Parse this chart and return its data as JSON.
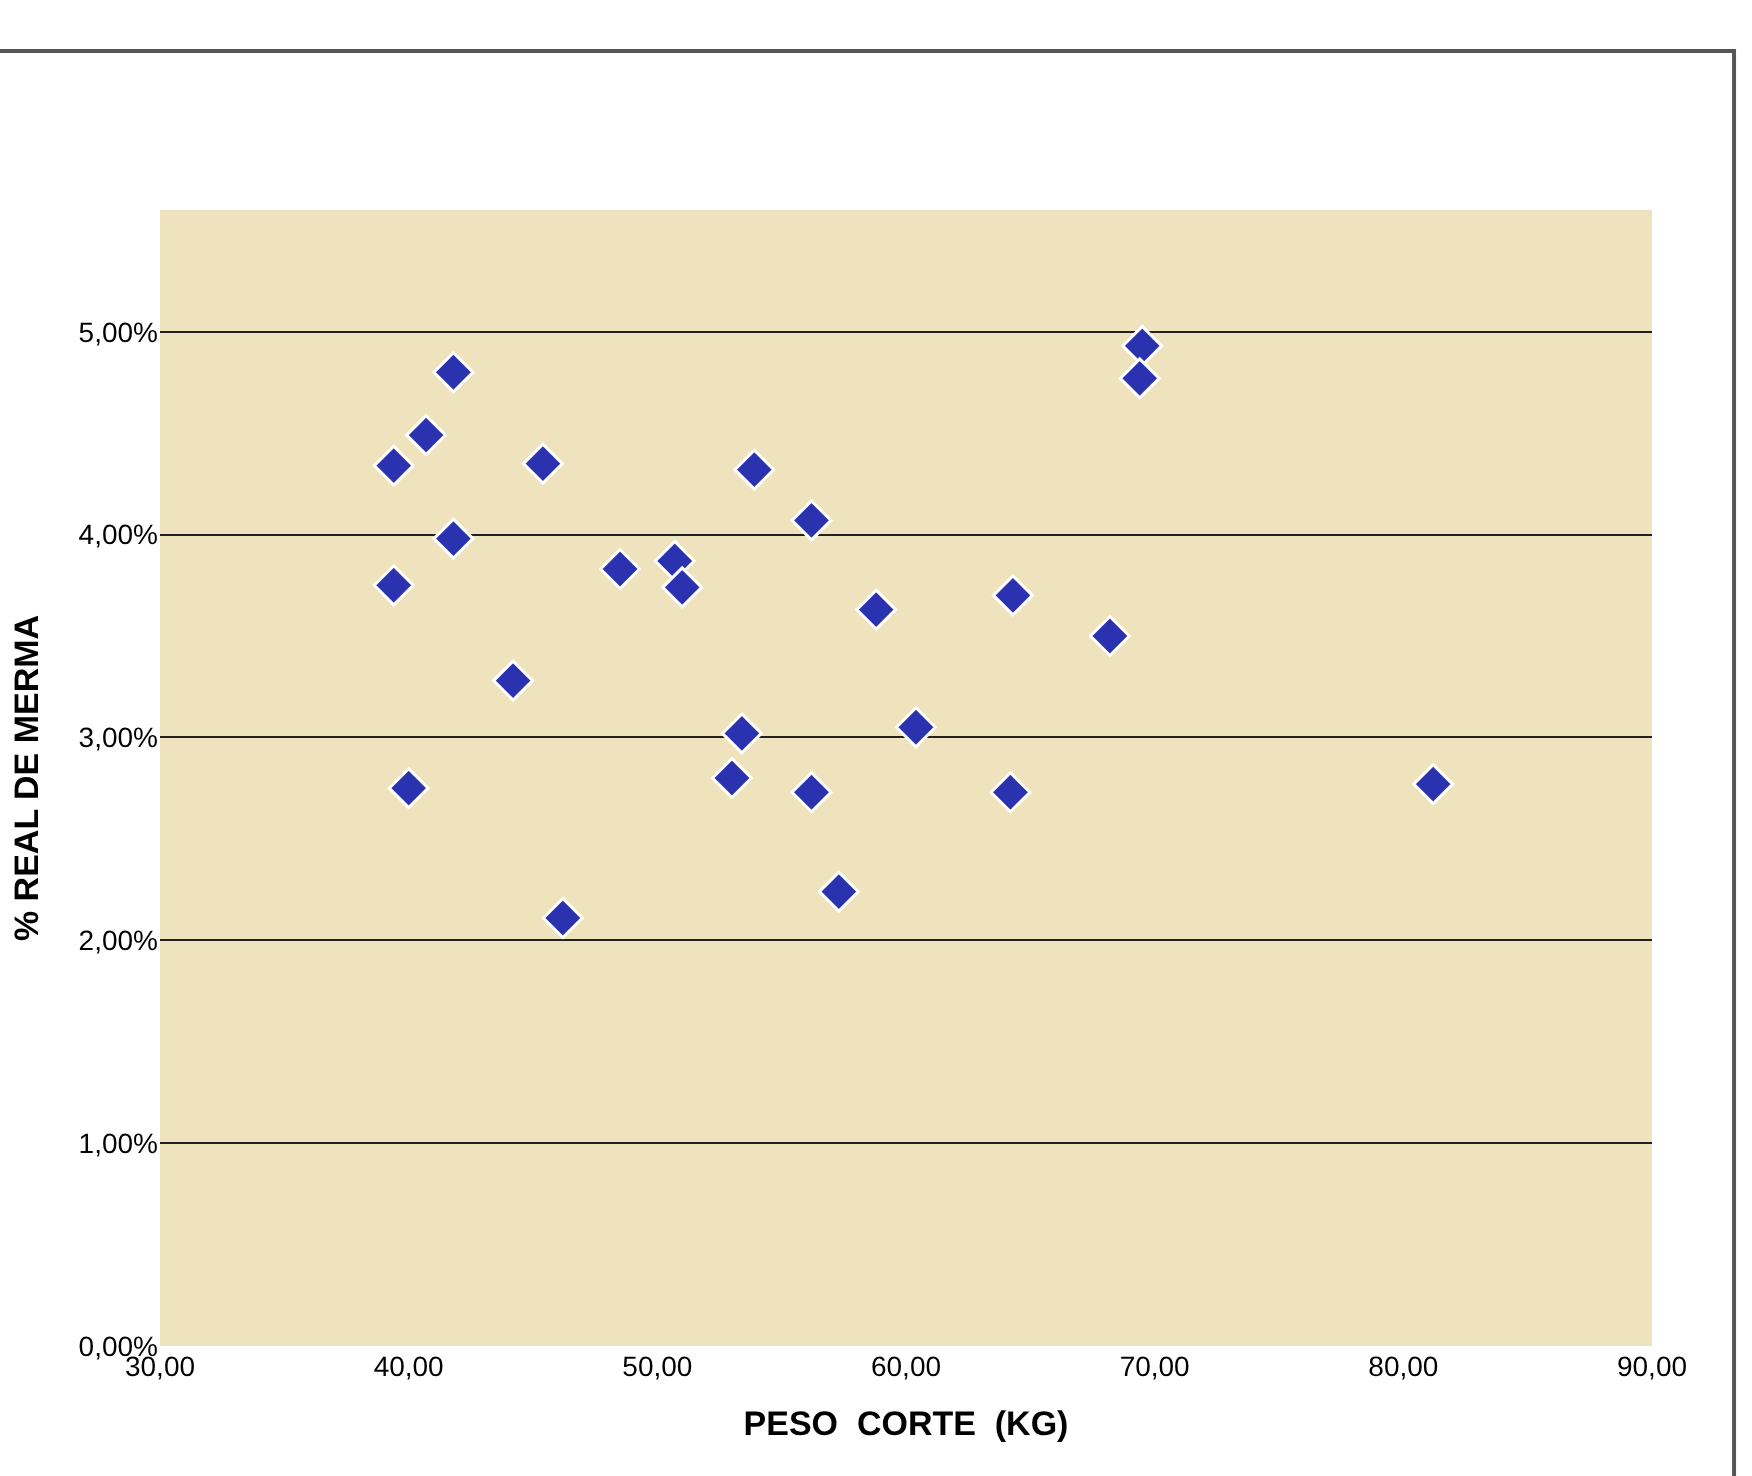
{
  "chart_data": {
    "type": "scatter",
    "xlabel": "PESO  CORTE  (KG)",
    "ylabel": "% REAL DE MERMA",
    "x": [
      39.4,
      40.7,
      41.8,
      41.8,
      39.4,
      40.0,
      44.2,
      45.4,
      46.2,
      48.5,
      50.7,
      51.0,
      53.9,
      53.4,
      53.0,
      56.2,
      56.2,
      57.3,
      58.8,
      60.4,
      64.3,
      64.2,
      68.2,
      69.5,
      69.4,
      81.2
    ],
    "series": [
      {
        "color": "#2a32b0",
        "values": [
          4.34,
          4.49,
          4.8,
          3.98,
          3.75,
          2.75,
          3.28,
          4.35,
          2.11,
          3.83,
          3.87,
          3.74,
          4.32,
          3.02,
          2.8,
          4.07,
          2.73,
          2.24,
          3.63,
          3.05,
          3.7,
          2.73,
          3.5,
          4.93,
          4.77,
          2.77
        ]
      }
    ],
    "marker": "diamond",
    "grid": "y",
    "xlim": [
      30,
      90
    ],
    "xticks": [
      {
        "value": 30,
        "label": "30,00"
      },
      {
        "value": 40,
        "label": "40,00"
      },
      {
        "value": 50,
        "label": "50,00"
      },
      {
        "value": 60,
        "label": "60,00"
      },
      {
        "value": 70,
        "label": "70,00"
      },
      {
        "value": 80,
        "label": "80,00"
      },
      {
        "value": 90,
        "label": "90,00"
      }
    ],
    "ylim": [
      0,
      5.6
    ],
    "yticks": [
      {
        "value": 0,
        "label": "0,00%"
      },
      {
        "value": 1,
        "label": "1,00%"
      },
      {
        "value": 2,
        "label": "2,00%"
      },
      {
        "value": 3,
        "label": "3,00%"
      },
      {
        "value": 4,
        "label": "4,00%"
      },
      {
        "value": 5,
        "label": "5,00%"
      }
    ]
  }
}
